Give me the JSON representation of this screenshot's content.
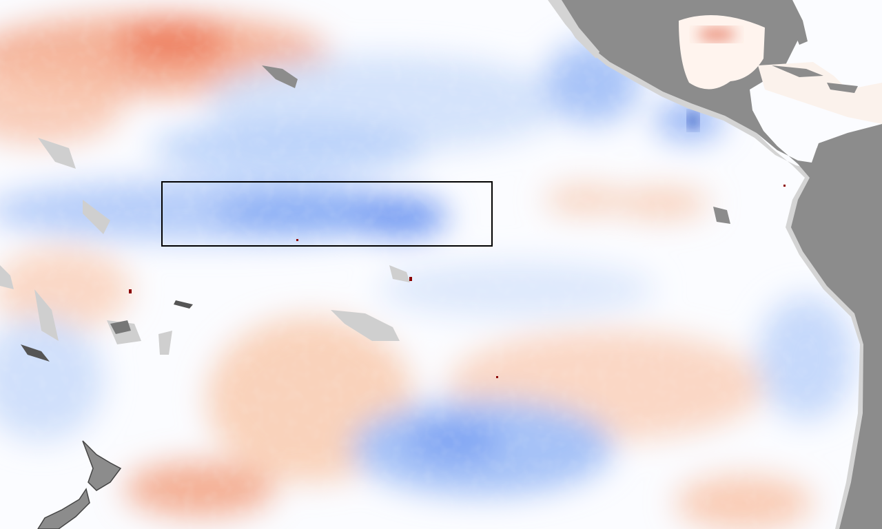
{
  "map": {
    "colors": {
      "warm": "#ee6a45",
      "cool": "#3f74f0",
      "neutral": "#ffffff",
      "land": "#8c8c8c",
      "coast_mask": "#d4d4d4",
      "highlight_box": "#000000"
    }
  }
}
